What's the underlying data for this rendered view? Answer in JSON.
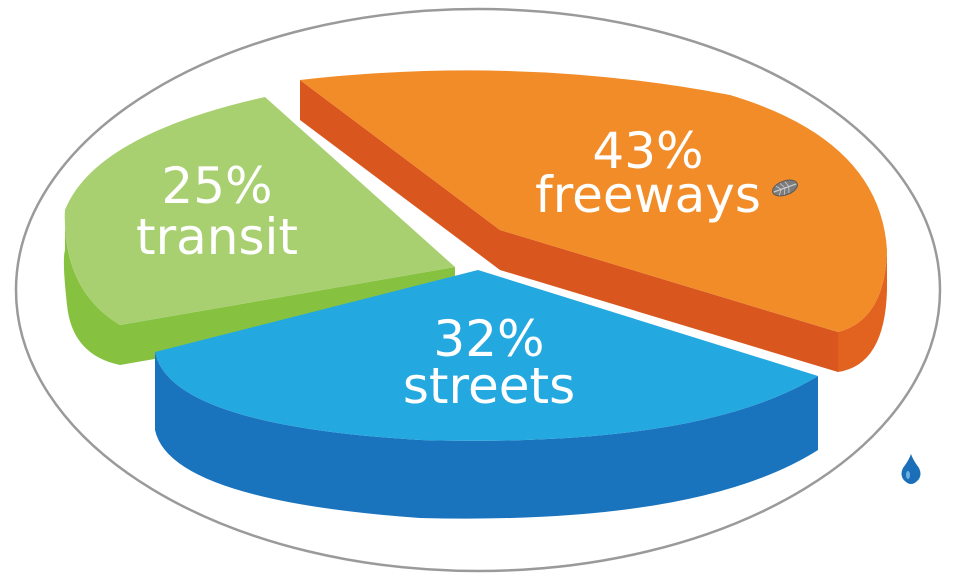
{
  "chart_data": {
    "type": "pie",
    "style": "3d-exploded",
    "slices": [
      {
        "percent_label": "43%",
        "name": "freeways",
        "value": 43,
        "top_color": "#F28C28",
        "side_color": "#E2621F",
        "inner_color": "#D9571E"
      },
      {
        "percent_label": "32%",
        "name": "streets",
        "value": 32,
        "top_color": "#24A8E0",
        "side_color": "#1A73BD",
        "inner_color": "#1A73BD"
      },
      {
        "percent_label": "25%",
        "name": "transit",
        "value": 25,
        "top_color": "#A8D071",
        "side_color": "#86C23F",
        "inner_color": "#CFDD2A"
      }
    ],
    "decorations": [
      "leaf-icon",
      "water-drop-icon"
    ],
    "frame": "ellipse-outline",
    "frame_color": "#9A9A9A"
  }
}
